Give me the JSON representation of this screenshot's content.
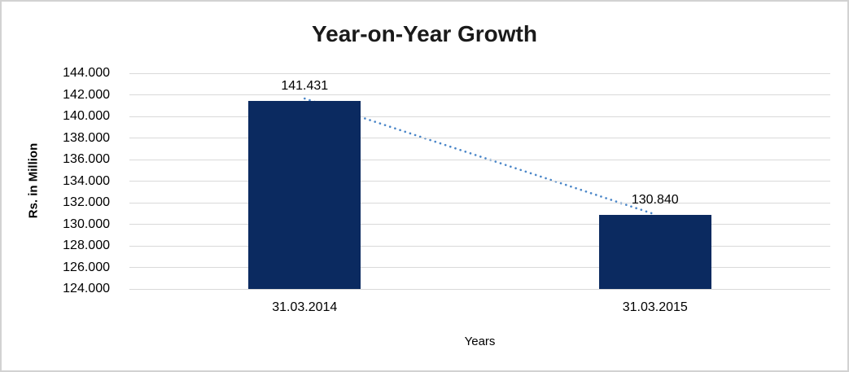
{
  "chart_data": {
    "type": "bar",
    "title": "Year-on-Year Growth",
    "xlabel": "Years",
    "ylabel": "Rs. in Million",
    "categories": [
      "31.03.2014",
      "31.03.2015"
    ],
    "values": [
      141.431,
      130.84
    ],
    "data_labels": [
      "141.431",
      "130.840"
    ],
    "y_ticks": [
      "144.000",
      "142.000",
      "140.000",
      "138.000",
      "136.000",
      "134.000",
      "132.000",
      "130.000",
      "128.000",
      "126.000",
      "124.000"
    ],
    "y_tick_values": [
      144,
      142,
      140,
      138,
      136,
      134,
      132,
      130,
      128,
      126,
      124
    ],
    "ylim": [
      124,
      144
    ],
    "grid": true,
    "legend": "none",
    "colors": {
      "bar": "#0b2a60",
      "trendline": "#4a86c8",
      "gridline": "#d9d9d9",
      "text": "#000000",
      "frame_border": "#d2d2d2"
    },
    "trendline": {
      "style": "dotted",
      "from_category": "31.03.2014",
      "from_value": 141.431,
      "to_category": "31.03.2015",
      "to_value": 130.84
    }
  }
}
